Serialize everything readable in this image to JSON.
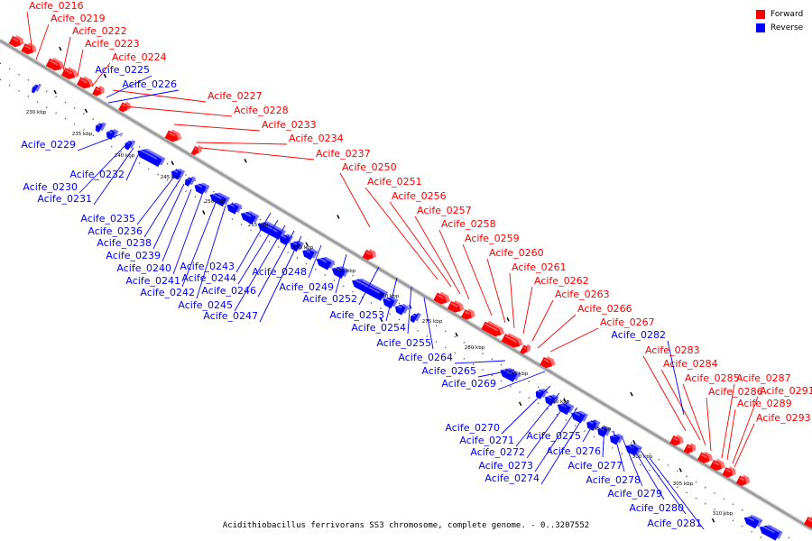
{
  "caption": "Acidithiobacillus ferrivorans SS3 chromosome, complete genome. - 0..3207552",
  "legend": [
    {
      "label": "Forward",
      "color": "#ff0000"
    },
    {
      "label": "Reverse",
      "color": "#0000ff"
    }
  ],
  "colors": {
    "forward": "#ff0000",
    "reverse": "#0000ff",
    "backbone": "#9a9a9a"
  },
  "scale_ticks": [
    "230 kbp",
    "235 kbp",
    "240 kbp",
    "245 kbp",
    "250 kbp",
    "255 kbp",
    "260 kbp",
    "265 kbp",
    "270 kbp",
    "275 kbp",
    "280 kbp",
    "285 kbp",
    "290 kbp",
    "295 kbp",
    "300 kbp",
    "305 kbp",
    "310 kbp"
  ],
  "forward_labels": [
    "Acife_0216",
    "Acife_0219",
    "Acife_0222",
    "Acife_0223",
    "Acife_0224",
    "Acife_0227",
    "Acife_0228",
    "Acife_0233",
    "Acife_0234",
    "Acife_0237",
    "Acife_0250",
    "Acife_0251",
    "Acife_0256",
    "Acife_0257",
    "Acife_0258",
    "Acife_0259",
    "Acife_0260",
    "Acife_0261",
    "Acife_0262",
    "Acife_0263",
    "Acife_0266",
    "Acife_0267",
    "Acife_0283",
    "Acife_0284",
    "Acife_0285",
    "Acife_0286",
    "Acife_0287",
    "Acife_0289",
    "Acife_0291",
    "Acife_0293"
  ],
  "reverse_labels": [
    "Acife_0225",
    "Acife_0226",
    "Acife_0229",
    "Acife_0230",
    "Acife_0231",
    "Acife_0232",
    "Acife_0235",
    "Acife_0236",
    "Acife_0238",
    "Acife_0239",
    "Acife_0240",
    "Acife_0241",
    "Acife_0242",
    "Acife_0243",
    "Acife_0244",
    "Acife_0245",
    "Acife_0246",
    "Acife_0247",
    "Acife_0248",
    "Acife_0249",
    "Acife_0252",
    "Acife_0253",
    "Acife_0254",
    "Acife_0255",
    "Acife_0264",
    "Acife_0265",
    "Acife_0269",
    "Acife_0270",
    "Acife_0271",
    "Acife_0272",
    "Acife_0273",
    "Acife_0274",
    "Acife_0275",
    "Acife_0276",
    "Acife_0277",
    "Acife_0278",
    "Acife_0279",
    "Acife_0280",
    "Acife_0281",
    "Acife_0282"
  ]
}
